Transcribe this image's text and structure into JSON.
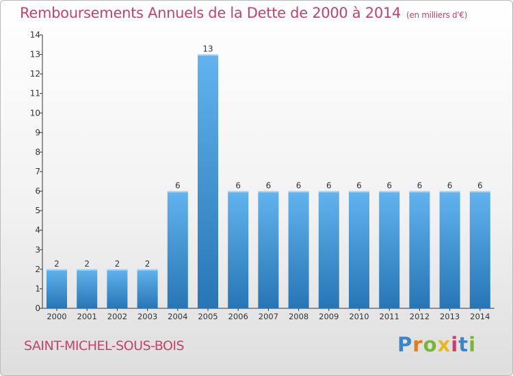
{
  "header": {
    "title": "Remboursements Annuels de la Dette de 2000 à 2014",
    "subtitle": "(en milliers d'€)"
  },
  "footer": {
    "town": "SAINT-MICHEL-SOUS-BOIS",
    "brand": "Proxiti",
    "brand_letters": [
      "P",
      "r",
      "o",
      "x",
      "i",
      "t",
      "i"
    ]
  },
  "colors": {
    "title": "#c8406b",
    "bar_light": "#5fb0ec",
    "bar_dark": "#2674b3",
    "axis": "#333333"
  },
  "chart_data": {
    "type": "bar",
    "categories": [
      "2000",
      "2001",
      "2002",
      "2003",
      "2004",
      "2005",
      "2006",
      "2007",
      "2008",
      "2009",
      "2010",
      "2011",
      "2012",
      "2013",
      "2014"
    ],
    "values": [
      2,
      2,
      2,
      2,
      6,
      13,
      6,
      6,
      6,
      6,
      6,
      6,
      6,
      6,
      6
    ],
    "data_labels": [
      "2",
      "2",
      "2",
      "2",
      "6",
      "13",
      "6",
      "6",
      "6",
      "6",
      "6",
      "6",
      "6",
      "6",
      "6"
    ],
    "yticks": [
      "0",
      "1",
      "2",
      "3",
      "4",
      "5",
      "6",
      "7",
      "8",
      "9",
      "10",
      "11",
      "12",
      "13",
      "14"
    ],
    "ylim": [
      0,
      14
    ],
    "grid": false,
    "legend": "none"
  }
}
